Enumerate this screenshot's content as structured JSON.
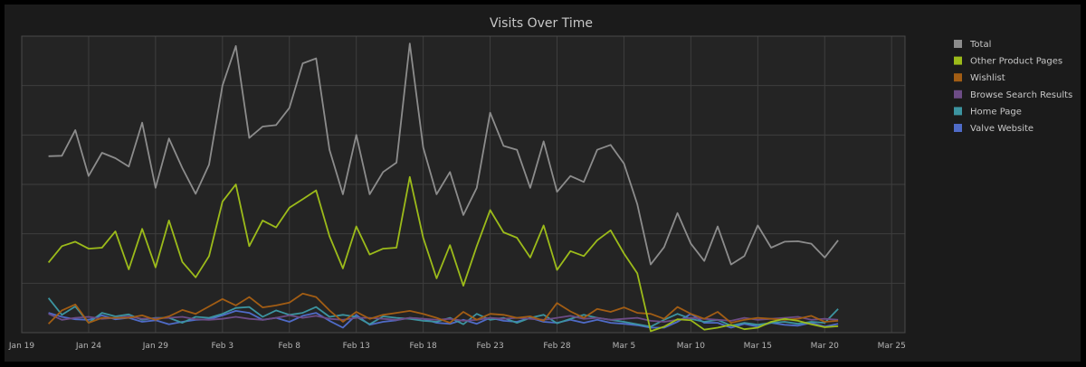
{
  "chart_data": {
    "type": "line",
    "title": "Visits Over Time",
    "xlabel": "",
    "ylabel": "",
    "x_ticks": [
      "Jan 19",
      "Jan 24",
      "Jan 29",
      "Feb 3",
      "Feb 8",
      "Feb 13",
      "Feb 18",
      "Feb 23",
      "Feb 28",
      "Mar 5",
      "Mar 10",
      "Mar 15",
      "Mar 20",
      "Mar 25"
    ],
    "x_range": [
      "2020-01-19",
      "2020-03-25"
    ],
    "y_ticks_labeled": false,
    "ylim": [
      0,
      6
    ],
    "grid": true,
    "legend_position": "right",
    "start_date": "2020-01-21",
    "series": [
      {
        "name": "Total",
        "color": "#8c8c8c",
        "values": [
          3.57,
          3.58,
          4.1,
          3.17,
          3.64,
          3.53,
          3.36,
          4.25,
          2.93,
          3.93,
          3.33,
          2.81,
          3.4,
          5.0,
          5.8,
          3.94,
          4.17,
          4.2,
          4.55,
          5.45,
          5.55,
          3.7,
          2.8,
          4.0,
          2.8,
          3.25,
          3.44,
          5.85,
          3.75,
          2.8,
          3.25,
          2.38,
          2.93,
          4.45,
          3.78,
          3.7,
          2.93,
          3.87,
          2.85,
          3.17,
          3.05,
          3.7,
          3.8,
          3.42,
          2.6,
          1.38,
          1.73,
          2.42,
          1.8,
          1.45,
          2.15,
          1.38,
          1.55,
          2.17,
          1.72,
          1.84,
          1.85,
          1.8,
          1.52,
          1.87
        ]
      },
      {
        "name": "Other Product Pages",
        "color": "#9cbb1a",
        "values": [
          1.42,
          1.75,
          1.84,
          1.7,
          1.72,
          2.05,
          1.28,
          2.1,
          1.32,
          2.27,
          1.43,
          1.12,
          1.55,
          2.65,
          3.0,
          1.75,
          2.27,
          2.13,
          2.53,
          2.7,
          2.88,
          1.95,
          1.3,
          2.15,
          1.58,
          1.7,
          1.72,
          3.15,
          1.92,
          1.1,
          1.77,
          0.95,
          1.75,
          2.48,
          2.03,
          1.92,
          1.52,
          2.17,
          1.27,
          1.65,
          1.55,
          1.87,
          2.07,
          1.6,
          1.2,
          0.03,
          0.12,
          0.27,
          0.25,
          0.06,
          0.1,
          0.16,
          0.07,
          0.1,
          0.22,
          0.28,
          0.24,
          0.17,
          0.11,
          0.13
        ]
      },
      {
        "name": "Wishlist",
        "color": "#a25d14",
        "values": [
          0.18,
          0.45,
          0.57,
          0.2,
          0.3,
          0.3,
          0.3,
          0.35,
          0.26,
          0.33,
          0.46,
          0.38,
          0.53,
          0.68,
          0.55,
          0.72,
          0.51,
          0.55,
          0.61,
          0.79,
          0.72,
          0.45,
          0.22,
          0.42,
          0.28,
          0.36,
          0.4,
          0.44,
          0.38,
          0.3,
          0.2,
          0.42,
          0.26,
          0.38,
          0.36,
          0.3,
          0.33,
          0.24,
          0.6,
          0.43,
          0.3,
          0.48,
          0.42,
          0.51,
          0.4,
          0.38,
          0.28,
          0.52,
          0.38,
          0.28,
          0.42,
          0.2,
          0.26,
          0.3,
          0.28,
          0.26,
          0.28,
          0.34,
          0.22,
          0.24
        ]
      },
      {
        "name": "Browse Search Results",
        "color": "#6d4c86",
        "values": [
          0.38,
          0.26,
          0.3,
          0.32,
          0.28,
          0.3,
          0.33,
          0.28,
          0.29,
          0.3,
          0.32,
          0.27,
          0.26,
          0.28,
          0.32,
          0.28,
          0.26,
          0.3,
          0.35,
          0.3,
          0.34,
          0.28,
          0.26,
          0.3,
          0.3,
          0.28,
          0.26,
          0.3,
          0.28,
          0.26,
          0.28,
          0.24,
          0.26,
          0.3,
          0.28,
          0.3,
          0.28,
          0.26,
          0.3,
          0.34,
          0.28,
          0.3,
          0.26,
          0.28,
          0.3,
          0.24,
          0.22,
          0.26,
          0.3,
          0.28,
          0.26,
          0.24,
          0.3,
          0.26,
          0.28,
          0.3,
          0.32,
          0.26,
          0.28,
          0.26
        ]
      },
      {
        "name": "Home Page",
        "color": "#3c94a0",
        "values": [
          0.7,
          0.36,
          0.53,
          0.2,
          0.4,
          0.33,
          0.37,
          0.26,
          0.3,
          0.3,
          0.2,
          0.32,
          0.3,
          0.38,
          0.5,
          0.52,
          0.32,
          0.45,
          0.36,
          0.4,
          0.52,
          0.32,
          0.36,
          0.32,
          0.17,
          0.33,
          0.3,
          0.28,
          0.24,
          0.22,
          0.3,
          0.17,
          0.38,
          0.26,
          0.3,
          0.2,
          0.3,
          0.36,
          0.19,
          0.28,
          0.36,
          0.3,
          0.26,
          0.22,
          0.17,
          0.12,
          0.26,
          0.38,
          0.28,
          0.22,
          0.26,
          0.14,
          0.2,
          0.16,
          0.2,
          0.22,
          0.18,
          0.22,
          0.2,
          0.48
        ]
      },
      {
        "name": "Valve Website",
        "color": "#4f6bc7",
        "values": [
          0.4,
          0.32,
          0.27,
          0.26,
          0.35,
          0.27,
          0.3,
          0.22,
          0.25,
          0.17,
          0.22,
          0.26,
          0.27,
          0.35,
          0.44,
          0.4,
          0.26,
          0.3,
          0.22,
          0.34,
          0.4,
          0.24,
          0.1,
          0.36,
          0.16,
          0.22,
          0.25,
          0.3,
          0.28,
          0.2,
          0.18,
          0.26,
          0.18,
          0.3,
          0.24,
          0.22,
          0.3,
          0.22,
          0.2,
          0.26,
          0.2,
          0.26,
          0.2,
          0.18,
          0.15,
          0.1,
          0.1,
          0.22,
          0.38,
          0.2,
          0.2,
          0.1,
          0.18,
          0.12,
          0.2,
          0.16,
          0.14,
          0.2,
          0.12,
          0.18
        ]
      }
    ]
  }
}
